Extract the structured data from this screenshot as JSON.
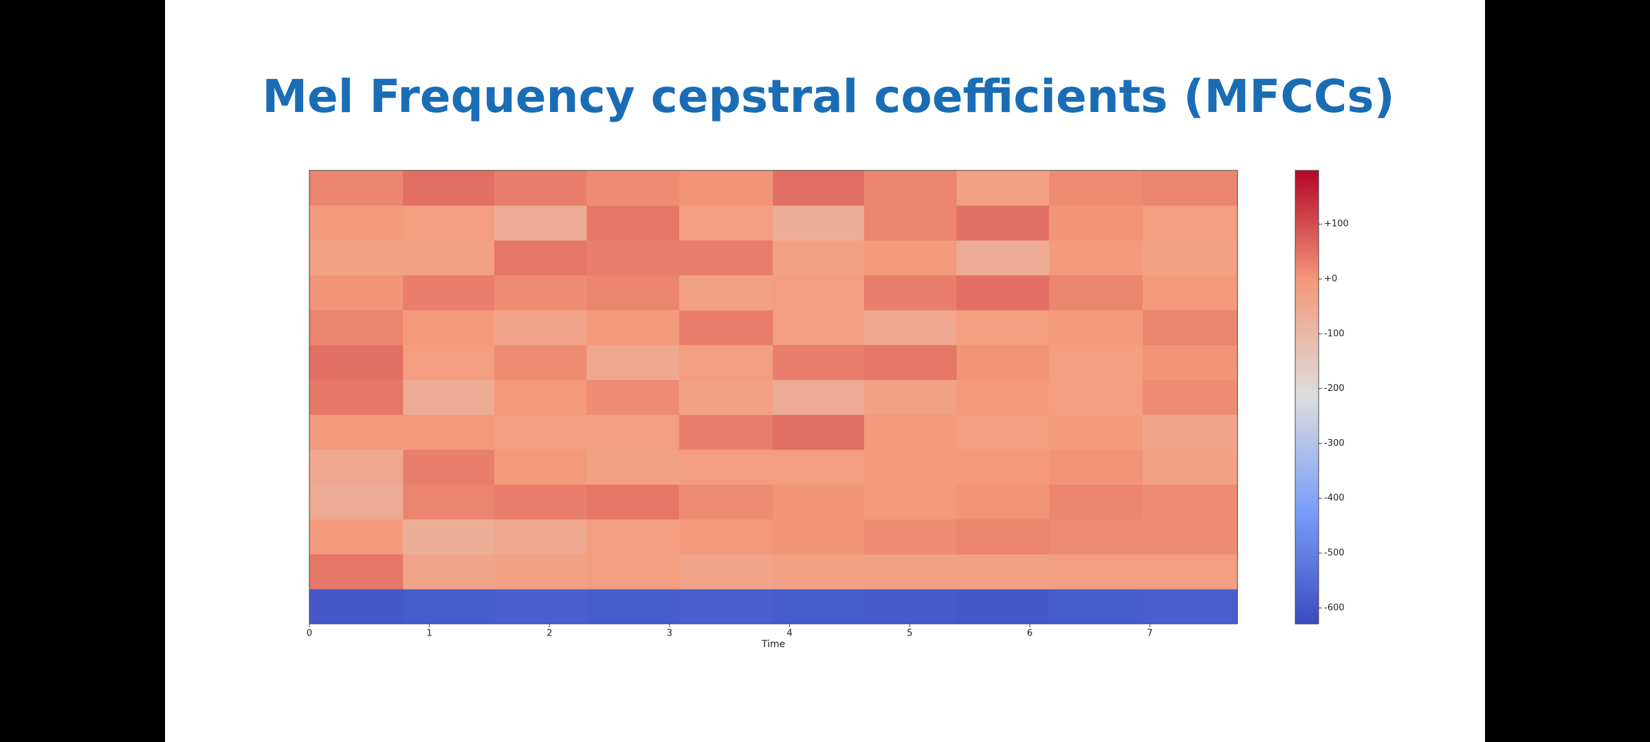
{
  "chart_data": {
    "type": "heatmap",
    "title": "Mel Frequency cepstral coefficients (MFCCs)",
    "xlabel": "Time",
    "x": [
      0,
      0.78,
      1.54,
      2.31,
      3.08,
      3.86,
      4.62,
      5.39,
      6.16,
      6.94,
      7.73
    ],
    "xlim": [
      0,
      7.73
    ],
    "xticks": [
      0,
      1,
      2,
      3,
      4,
      5,
      6,
      7
    ],
    "colormap": "coolwarm",
    "clim": [
      -629,
      198
    ],
    "cticks": [
      {
        "value": 100,
        "label": "+100"
      },
      {
        "value": 0,
        "label": "+0"
      },
      -100,
      -200,
      -300,
      -400,
      -500,
      -600
    ],
    "values": [
      [
        -600,
        -590,
        -585,
        -590,
        -585,
        -590,
        -595,
        -600,
        -590,
        -585
      ],
      [
        40,
        -40,
        -30,
        -20,
        -40,
        -30,
        -30,
        -30,
        -20,
        -20
      ],
      [
        -10,
        -70,
        -50,
        -20,
        -10,
        0,
        10,
        20,
        10,
        10
      ],
      [
        -60,
        20,
        30,
        40,
        10,
        0,
        -10,
        0,
        20,
        10
      ],
      [
        -50,
        30,
        -10,
        -30,
        -20,
        -20,
        -10,
        -10,
        0,
        -30
      ],
      [
        -10,
        -10,
        -20,
        -20,
        30,
        50,
        -10,
        -20,
        -10,
        -40
      ],
      [
        40,
        -60,
        -10,
        10,
        -30,
        -60,
        -30,
        -10,
        -20,
        10
      ],
      [
        50,
        -20,
        10,
        -50,
        -20,
        30,
        40,
        0,
        -20,
        0
      ],
      [
        20,
        -10,
        -40,
        -10,
        30,
        -20,
        -50,
        -20,
        -10,
        20
      ],
      [
        0,
        30,
        10,
        20,
        -30,
        -20,
        30,
        50,
        20,
        -10
      ],
      [
        -30,
        -30,
        40,
        30,
        30,
        -30,
        -10,
        -60,
        -10,
        -30
      ],
      [
        -10,
        -20,
        -60,
        40,
        -20,
        -70,
        20,
        50,
        0,
        -20
      ],
      [
        20,
        50,
        30,
        10,
        0,
        50,
        20,
        -30,
        10,
        20
      ]
    ]
  }
}
